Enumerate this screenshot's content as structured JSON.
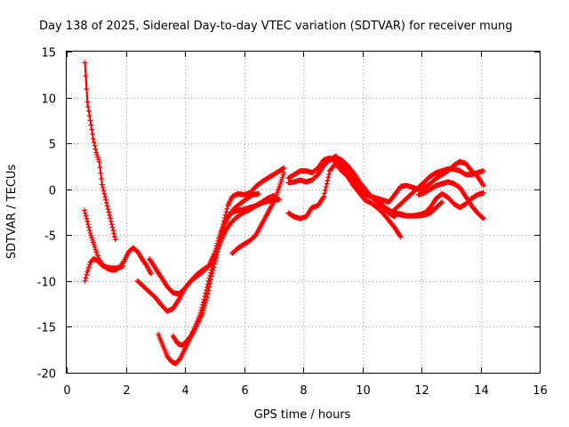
{
  "chart_data": {
    "type": "scatter",
    "title": "Day 138 of 2025, Sidereal Day-to-day VTEC variation (SDTVAR) for receiver mung",
    "xlabel": "GPS time / hours",
    "ylabel": "SDTVAR / TECUs",
    "xlim": [
      0,
      16
    ],
    "ylim": [
      -20,
      15
    ],
    "xticks": [
      0,
      2,
      4,
      6,
      8,
      10,
      12,
      14,
      16
    ],
    "yticks": [
      15,
      10,
      5,
      0,
      -5,
      -10,
      -15,
      -20
    ],
    "grid": true,
    "marker": "+",
    "color": "#ff0000",
    "series": [
      {
        "x": [
          0.62,
          0.7,
          0.8,
          0.9,
          1.0,
          1.1,
          1.2,
          1.35,
          1.5,
          1.65
        ],
        "y": [
          13.8,
          9.5,
          7.5,
          5.5,
          4.0,
          3.0,
          0.5,
          -1.5,
          -3.5,
          -5.5
        ]
      },
      {
        "x": [
          0.6,
          0.7,
          0.8,
          0.9,
          1.0,
          1.1,
          1.2,
          1.35,
          1.5,
          1.65,
          1.8,
          1.95,
          2.1,
          2.25,
          2.4,
          2.55,
          2.7,
          2.85
        ],
        "y": [
          -2.3,
          -3.5,
          -4.8,
          -5.8,
          -6.8,
          -7.7,
          -8.2,
          -8.6,
          -8.8,
          -8.8,
          -8.5,
          -7.8,
          -6.8,
          -6.4,
          -6.8,
          -7.6,
          -8.3,
          -9.2
        ]
      },
      {
        "x": [
          0.62,
          0.7,
          0.8,
          0.9,
          1.0,
          1.1,
          1.2,
          1.35,
          1.5,
          1.7,
          1.9
        ],
        "y": [
          -10.0,
          -9.0,
          -8.0,
          -7.6,
          -7.7,
          -8.0,
          -8.3,
          -8.5,
          -8.6,
          -8.6,
          -8.4
        ]
      },
      {
        "x": [
          2.8,
          3.0,
          3.2,
          3.4,
          3.6,
          3.8,
          4.0,
          4.2,
          4.4,
          4.6,
          4.8,
          5.0,
          5.15,
          5.3,
          5.45,
          5.6,
          5.8,
          6.0,
          6.2,
          6.4,
          6.6,
          6.8,
          7.0,
          7.2,
          7.35
        ],
        "y": [
          -7.6,
          -8.6,
          -9.6,
          -10.6,
          -11.3,
          -11.4,
          -10.8,
          -10.0,
          -9.3,
          -8.8,
          -8.4,
          -7.6,
          -6.0,
          -3.8,
          -1.8,
          -0.8,
          -0.5,
          -0.6,
          -0.4,
          0.3,
          0.8,
          1.2,
          1.6,
          2.0,
          2.3
        ]
      },
      {
        "x": [
          2.4,
          2.6,
          2.8,
          3.0,
          3.2,
          3.4,
          3.6,
          3.8,
          4.0,
          4.2,
          4.4,
          4.6,
          4.8,
          5.0,
          5.2,
          5.4,
          5.6,
          5.8,
          6.0,
          6.2,
          6.4,
          6.6,
          6.8,
          7.0,
          7.2
        ],
        "y": [
          -10.0,
          -10.6,
          -11.2,
          -11.8,
          -12.6,
          -13.3,
          -13.0,
          -12.0,
          -10.8,
          -10.0,
          -9.5,
          -9.0,
          -8.4,
          -7.0,
          -4.8,
          -3.2,
          -2.5,
          -2.3,
          -2.2,
          -2.0,
          -1.8,
          -1.5,
          -1.3,
          -1.2,
          -1.1
        ]
      },
      {
        "x": [
          3.1,
          3.25,
          3.4,
          3.55,
          3.7,
          3.85,
          4.0,
          4.15,
          4.3,
          4.45,
          4.6,
          4.75,
          4.9,
          5.05,
          5.2,
          5.35,
          5.5,
          5.7,
          5.9,
          6.1,
          6.3,
          6.5
        ],
        "y": [
          -15.8,
          -17.0,
          -18.2,
          -18.8,
          -19.0,
          -18.4,
          -17.4,
          -16.4,
          -15.5,
          -14.5,
          -13.5,
          -11.8,
          -9.5,
          -7.5,
          -5.4,
          -3.8,
          -2.8,
          -2.0,
          -1.5,
          -1.0,
          -0.6,
          -0.5
        ]
      },
      {
        "x": [
          3.6,
          3.75,
          3.9,
          4.05,
          4.2,
          4.35,
          4.5,
          4.65,
          4.8,
          4.95,
          5.1,
          5.25,
          5.4,
          5.55,
          5.7,
          5.85,
          6.0,
          6.2,
          6.4,
          6.6,
          6.8,
          7.0
        ],
        "y": [
          -16.0,
          -16.8,
          -17.0,
          -16.6,
          -16.0,
          -15.0,
          -13.8,
          -12.0,
          -10.0,
          -8.2,
          -6.6,
          -5.4,
          -4.4,
          -3.7,
          -3.2,
          -2.8,
          -2.5,
          -2.2,
          -1.8,
          -1.4,
          -1.0,
          -0.7
        ]
      },
      {
        "x": [
          5.6,
          5.8,
          6.0,
          6.2,
          6.4,
          6.6,
          6.8,
          7.0,
          7.2,
          7.35
        ],
        "y": [
          -7.0,
          -6.4,
          -6.0,
          -5.6,
          -5.0,
          -3.8,
          -2.6,
          -1.4,
          0.3,
          1.8
        ]
      },
      {
        "x": [
          7.5,
          7.7,
          7.9,
          8.1,
          8.3,
          8.5,
          8.7,
          8.9,
          9.1,
          9.3,
          9.5,
          9.7,
          9.9,
          10.1,
          10.3,
          10.5,
          10.7,
          10.9,
          11.1,
          11.3
        ],
        "y": [
          1.2,
          1.6,
          2.0,
          2.0,
          1.8,
          2.3,
          3.2,
          3.4,
          3.0,
          2.4,
          1.4,
          0.4,
          -0.4,
          -1.2,
          -1.5,
          -2.0,
          -2.6,
          -3.4,
          -4.2,
          -5.2
        ]
      },
      {
        "x": [
          7.5,
          7.7,
          7.9,
          8.1,
          8.3,
          8.5,
          8.7,
          8.9,
          9.1,
          9.3,
          9.5,
          9.7,
          9.9,
          10.1,
          10.3,
          10.5,
          10.7,
          10.9,
          11.1
        ],
        "y": [
          0.7,
          0.8,
          1.0,
          0.8,
          1.0,
          1.6,
          2.6,
          3.2,
          3.6,
          3.0,
          2.0,
          1.0,
          0.2,
          -0.4,
          -0.8,
          -1.4,
          -2.0,
          -2.6,
          -3.0
        ]
      },
      {
        "x": [
          7.5,
          7.7,
          7.9,
          8.1,
          8.3,
          8.5,
          8.7,
          8.9,
          9.1,
          9.3,
          9.5,
          9.7,
          9.9,
          10.1,
          10.3,
          10.5,
          10.7,
          10.9,
          11.1,
          11.3,
          11.5,
          11.7,
          11.9,
          12.1,
          12.3,
          12.5,
          12.7
        ],
        "y": [
          -2.6,
          -3.0,
          -3.2,
          -3.0,
          -2.0,
          -1.8,
          -0.8,
          2.0,
          2.8,
          2.0,
          1.4,
          0.6,
          0.0,
          -0.4,
          -0.8,
          -1.2,
          -1.8,
          -2.3,
          -2.6,
          -2.7,
          -2.9,
          -2.9,
          -2.9,
          -2.8,
          -2.6,
          -2.0,
          -1.4
        ]
      },
      {
        "x": [
          8.9,
          9.1,
          9.3,
          9.5,
          9.7,
          9.9,
          10.1,
          10.3,
          10.5,
          10.7,
          10.9,
          11.1,
          11.3,
          11.5,
          11.7,
          11.9,
          12.1,
          12.3,
          12.5,
          12.7,
          12.9,
          13.1,
          13.3,
          13.5,
          13.7,
          13.9,
          14.1
        ],
        "y": [
          3.2,
          3.4,
          3.2,
          2.6,
          1.8,
          0.8,
          0.0,
          -0.8,
          -1.4,
          -1.9,
          -2.4,
          -2.6,
          -2.8,
          -2.9,
          -2.9,
          -2.8,
          -2.6,
          -2.0,
          -1.0,
          -0.5,
          -0.9,
          -1.6,
          -2.0,
          -1.6,
          -1.0,
          -0.6,
          -0.4
        ]
      },
      {
        "x": [
          10.1,
          10.3,
          10.5,
          10.7,
          10.9,
          11.1,
          11.3,
          11.5,
          11.7,
          11.9,
          12.1,
          12.3,
          12.5,
          12.7,
          12.9,
          13.1,
          13.3,
          13.5,
          13.7,
          13.9,
          14.1
        ],
        "y": [
          -0.6,
          -0.8,
          -1.0,
          -1.2,
          -1.4,
          -0.6,
          0.3,
          0.4,
          0.2,
          0.0,
          0.2,
          0.6,
          1.2,
          1.6,
          2.0,
          2.6,
          3.0,
          2.8,
          2.0,
          1.4,
          0.4
        ]
      },
      {
        "x": [
          11.1,
          11.3,
          11.5,
          11.7,
          11.9,
          12.1,
          12.3,
          12.5,
          12.7,
          12.9,
          13.1,
          13.3,
          13.5,
          13.7,
          13.9,
          14.1
        ],
        "y": [
          -2.2,
          -1.6,
          -1.0,
          -0.4,
          0.2,
          0.8,
          1.4,
          1.8,
          2.0,
          2.2,
          2.2,
          2.0,
          1.6,
          1.6,
          1.8,
          2.0
        ]
      },
      {
        "x": [
          11.9,
          12.1,
          12.3,
          12.5,
          12.7,
          12.9,
          13.1,
          13.3,
          13.5,
          13.7,
          13.9,
          14.1
        ],
        "y": [
          -0.6,
          -0.4,
          0.0,
          0.4,
          0.6,
          0.8,
          0.6,
          0.2,
          -0.8,
          -1.8,
          -2.6,
          -3.2
        ]
      }
    ]
  }
}
